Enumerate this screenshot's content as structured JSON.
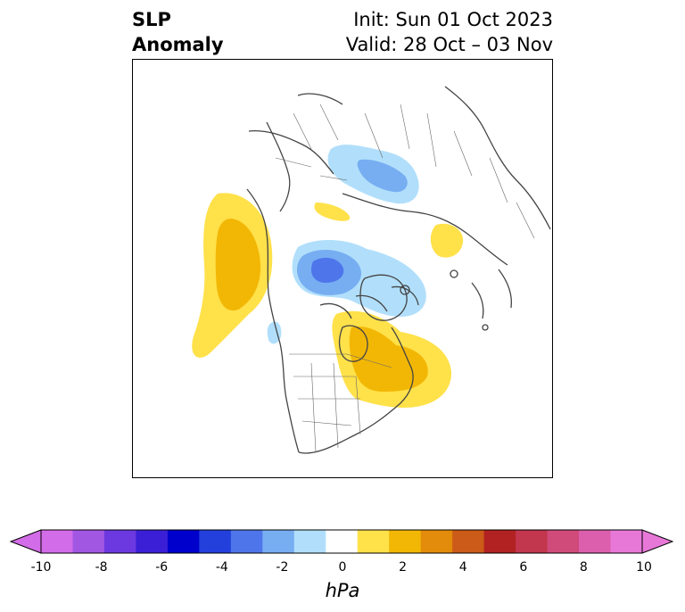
{
  "title": {
    "left_line1": "SLP",
    "left_line2": "Anomaly",
    "right_line1": "Init: Sun 01 Oct 2023",
    "right_line2": "Valid: 28 Oct – 03 Nov"
  },
  "colorbar": {
    "units": "hPa",
    "ticks": [
      "-10",
      "-8",
      "-6",
      "-4",
      "-2",
      "0",
      "2",
      "4",
      "6",
      "8",
      "10"
    ],
    "colors": [
      "#d36ce8",
      "#a257e3",
      "#6c39e0",
      "#3a1fd6",
      "#0000cd",
      "#2340dd",
      "#4e76ea",
      "#77aef2",
      "#b1dffb",
      "#ffffff",
      "#ffe14a",
      "#f2b705",
      "#e38b0a",
      "#cc5a18",
      "#b22222",
      "#c2374d",
      "#d04a7a",
      "#dc5fad",
      "#e878d8"
    ]
  },
  "map": {
    "anomaly_colors": {
      "positive_light": "#ffe14a",
      "positive_mid": "#f2b705",
      "negative_light": "#b1dffb",
      "negative_mid": "#77aef2",
      "negative_strong": "#4e76ea"
    }
  }
}
